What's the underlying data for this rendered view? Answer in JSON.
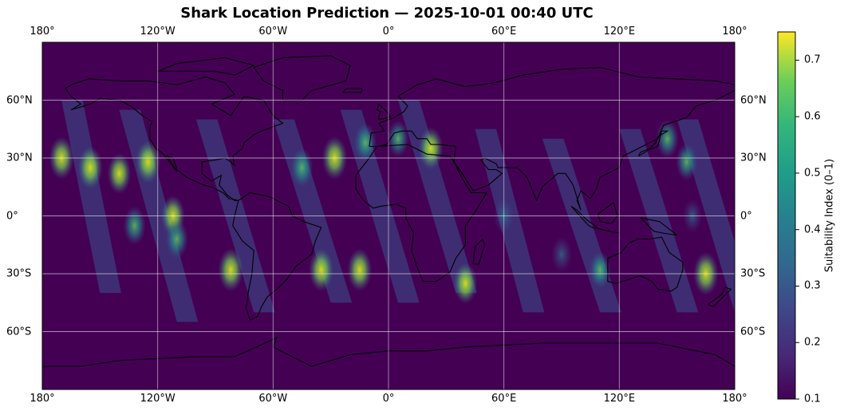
{
  "title": "Shark Location Prediction — 2025-10-01 00:40 UTC",
  "map": {
    "projection": "equirectangular",
    "lon_range": [
      -180,
      180
    ],
    "lat_range": [
      -90,
      90
    ],
    "lon_ticks": [
      {
        "value": -180,
        "label": "180°"
      },
      {
        "value": -120,
        "label": "120°W"
      },
      {
        "value": -60,
        "label": "60°W"
      },
      {
        "value": 0,
        "label": "0°"
      },
      {
        "value": 60,
        "label": "60°E"
      },
      {
        "value": 120,
        "label": "120°E"
      },
      {
        "value": 180,
        "label": "180°"
      }
    ],
    "lat_ticks": [
      {
        "value": 60,
        "label": "60°N"
      },
      {
        "value": 30,
        "label": "30°N"
      },
      {
        "value": 0,
        "label": "0°"
      },
      {
        "value": -30,
        "label": "30°S"
      },
      {
        "value": -60,
        "label": "60°S"
      }
    ],
    "grid": true,
    "background_color": "#440154",
    "coastline_color": "#000000"
  },
  "colorbar": {
    "label": "Suitability Index (0–1)",
    "min": 0.1,
    "max": 0.75,
    "colormap": "viridis",
    "ticks": [
      {
        "value": 0.1,
        "label": "0.1"
      },
      {
        "value": 0.2,
        "label": "0.2"
      },
      {
        "value": 0.3,
        "label": "0.3"
      },
      {
        "value": 0.4,
        "label": "0.4"
      },
      {
        "value": 0.5,
        "label": "0.5"
      },
      {
        "value": 0.6,
        "label": "0.6"
      },
      {
        "value": 0.7,
        "label": "0.7"
      }
    ]
  },
  "hotspots": [
    {
      "lon": -155,
      "lat": 25,
      "value": 0.7
    },
    {
      "lon": -140,
      "lat": 22,
      "value": 0.65
    },
    {
      "lon": -125,
      "lat": 28,
      "value": 0.7
    },
    {
      "lon": -132,
      "lat": -5,
      "value": 0.6
    },
    {
      "lon": -112,
      "lat": 0,
      "value": 0.65
    },
    {
      "lon": -110,
      "lat": -12,
      "value": 0.6
    },
    {
      "lon": -82,
      "lat": -28,
      "value": 0.72
    },
    {
      "lon": -45,
      "lat": 25,
      "value": 0.6
    },
    {
      "lon": -28,
      "lat": 30,
      "value": 0.72
    },
    {
      "lon": -12,
      "lat": 38,
      "value": 0.6
    },
    {
      "lon": 22,
      "lat": 35,
      "value": 0.7
    },
    {
      "lon": 5,
      "lat": 40,
      "value": 0.55
    },
    {
      "lon": -35,
      "lat": -28,
      "value": 0.7
    },
    {
      "lon": -15,
      "lat": -28,
      "value": 0.7
    },
    {
      "lon": 40,
      "lat": -35,
      "value": 0.65
    },
    {
      "lon": 60,
      "lat": 0,
      "value": 0.5
    },
    {
      "lon": 90,
      "lat": -20,
      "value": 0.5
    },
    {
      "lon": 110,
      "lat": -28,
      "value": 0.55
    },
    {
      "lon": 145,
      "lat": 40,
      "value": 0.6
    },
    {
      "lon": 155,
      "lat": 28,
      "value": 0.55
    },
    {
      "lon": 165,
      "lat": -30,
      "value": 0.72
    },
    {
      "lon": 158,
      "lat": 0,
      "value": 0.45
    },
    {
      "lon": -170,
      "lat": 30,
      "value": 0.7
    }
  ]
}
